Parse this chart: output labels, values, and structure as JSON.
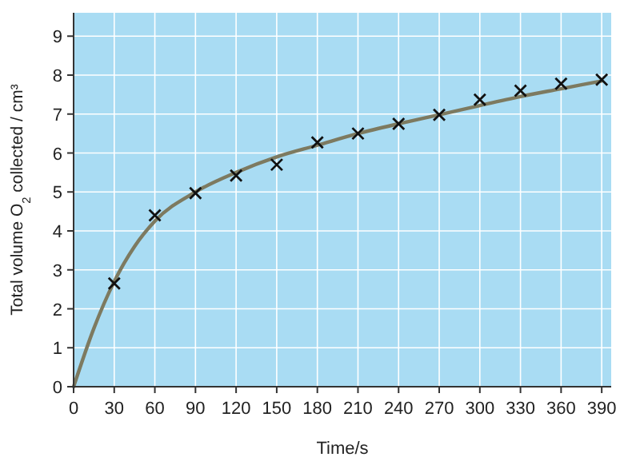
{
  "chart_data": {
    "type": "scatter",
    "xlabel": "Time/s",
    "ylabel": "Total volume O$_{2}$ collected / cm³",
    "xlim": [
      0,
      397
    ],
    "ylim": [
      0,
      9.6
    ],
    "xticks": [
      0,
      30,
      60,
      90,
      120,
      150,
      180,
      210,
      240,
      270,
      300,
      330,
      360,
      390
    ],
    "yticks": [
      0,
      1,
      2,
      3,
      4,
      5,
      6,
      7,
      8,
      9
    ],
    "grid": true,
    "series": [
      {
        "type": "line",
        "marker": "none",
        "color": "#7d7a60",
        "x": [
          0,
          15,
          30,
          45,
          60,
          90,
          120,
          150,
          180,
          210,
          240,
          270,
          300,
          330,
          360,
          390
        ],
        "values": [
          0,
          1.5,
          2.7,
          3.6,
          4.25,
          5.0,
          5.5,
          5.9,
          6.2,
          6.5,
          6.75,
          6.98,
          7.22,
          7.45,
          7.65,
          7.85
        ]
      },
      {
        "marker": "cross",
        "color": "#111111",
        "x": [
          30,
          60,
          90,
          120,
          150,
          180,
          210,
          240,
          270,
          300,
          330,
          360,
          390
        ],
        "values": [
          2.65,
          4.4,
          4.97,
          5.42,
          5.7,
          6.27,
          6.5,
          6.75,
          6.98,
          7.37,
          7.6,
          7.78,
          7.88
        ]
      }
    ]
  }
}
